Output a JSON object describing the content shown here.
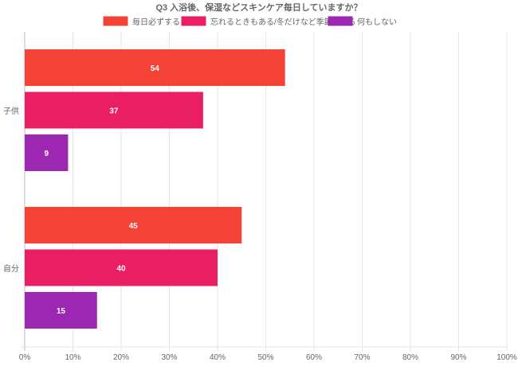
{
  "chart_data": {
    "type": "bar",
    "orientation": "horizontal",
    "title": "Q3 入浴後、保湿などスキンケア毎日していますか？",
    "categories": [
      "子供",
      "自分"
    ],
    "series": [
      {
        "name": "毎日必ずする",
        "color": "#f44336",
        "values": [
          54,
          45
        ]
      },
      {
        "name": "忘れるときもある/冬だけなど季節による",
        "color": "#e91e63",
        "values": [
          37,
          40
        ]
      },
      {
        "name": "何もしない",
        "color": "#9c27b0",
        "values": [
          9,
          15
        ]
      }
    ],
    "xlim": [
      0,
      100
    ],
    "xticks": [
      "0%",
      "10%",
      "20%",
      "30%",
      "40%",
      "50%",
      "60%",
      "70%",
      "80%",
      "90%",
      "100%"
    ],
    "grid": true,
    "legend": "top-center",
    "xlabel": "",
    "ylabel": ""
  }
}
